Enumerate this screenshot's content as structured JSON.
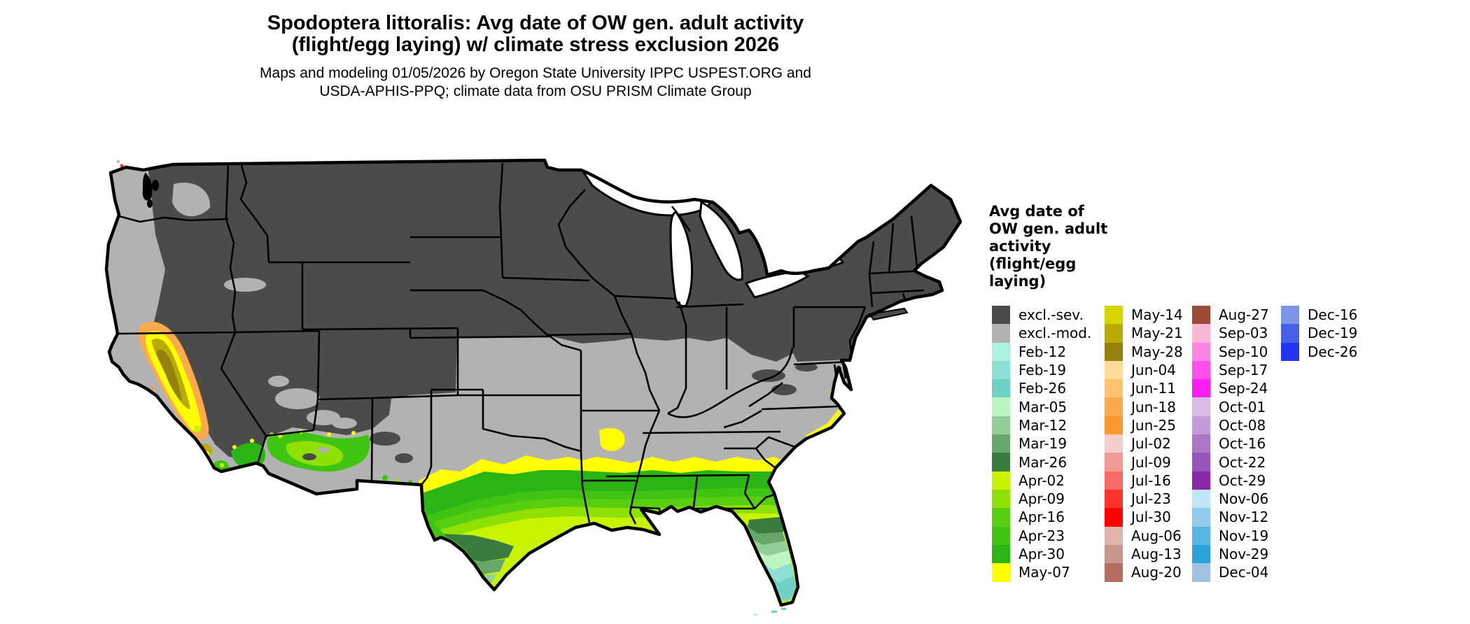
{
  "title": {
    "line1": "Spodoptera littoralis: Avg date of OW gen. adult activity",
    "line2": "(flight/egg laying) w/ climate stress exclusion 2026"
  },
  "subtitle": {
    "line1": "Maps and modeling 01/05/2026 by Oregon State University IPPC USPEST.ORG and",
    "line2": "USDA-APHIS-PPQ; climate data from OSU PRISM Climate Group"
  },
  "legend": {
    "title_lines": [
      "Avg date of",
      "OW gen. adult",
      "activity",
      "(flight/egg",
      "laying)"
    ],
    "columns": [
      {
        "entries": [
          {
            "label": "excl.-sev.",
            "color": "#4b4b4b"
          },
          {
            "label": "excl.-mod.",
            "color": "#b2b2b2"
          },
          {
            "label": "Feb-12",
            "color": "#aaf3dc"
          },
          {
            "label": "Feb-19",
            "color": "#8ce0d4"
          },
          {
            "label": "Feb-26",
            "color": "#70d1c6"
          },
          {
            "label": "Mar-05",
            "color": "#bdf6c5"
          },
          {
            "label": "Mar-12",
            "color": "#92cf97"
          },
          {
            "label": "Mar-19",
            "color": "#68a76c"
          },
          {
            "label": "Mar-26",
            "color": "#3a7b40"
          },
          {
            "label": "Apr-02",
            "color": "#c9f302"
          },
          {
            "label": "Apr-09",
            "color": "#8fe105"
          },
          {
            "label": "Apr-16",
            "color": "#57cf10"
          },
          {
            "label": "Apr-23",
            "color": "#3fc411"
          },
          {
            "label": "Apr-30",
            "color": "#2ab514"
          },
          {
            "label": "May-07",
            "color": "#ffff00"
          }
        ]
      },
      {
        "entries": [
          {
            "label": "May-14",
            "color": "#d7d500"
          },
          {
            "label": "May-21",
            "color": "#baaa08"
          },
          {
            "label": "May-28",
            "color": "#94800b"
          },
          {
            "label": "Jun-04",
            "color": "#ffdd99"
          },
          {
            "label": "Jun-11",
            "color": "#ffc470"
          },
          {
            "label": "Jun-18",
            "color": "#fbab4d"
          },
          {
            "label": "Jun-25",
            "color": "#fb9930"
          },
          {
            "label": "Jul-02",
            "color": "#f2cfcc"
          },
          {
            "label": "Jul-09",
            "color": "#f29a96"
          },
          {
            "label": "Jul-16",
            "color": "#f76b66"
          },
          {
            "label": "Jul-23",
            "color": "#fa332c"
          },
          {
            "label": "Jul-30",
            "color": "#ff0100"
          },
          {
            "label": "Aug-06",
            "color": "#e0b5ab"
          },
          {
            "label": "Aug-13",
            "color": "#c9968b"
          },
          {
            "label": "Aug-20",
            "color": "#b56f60"
          }
        ]
      },
      {
        "entries": [
          {
            "label": "Aug-27",
            "color": "#9e4a38"
          },
          {
            "label": "Sep-03",
            "color": "#fbb5d6"
          },
          {
            "label": "Sep-10",
            "color": "#fb85e3"
          },
          {
            "label": "Sep-17",
            "color": "#fb50ec"
          },
          {
            "label": "Sep-24",
            "color": "#fb1ef1"
          },
          {
            "label": "Oct-01",
            "color": "#d9bce4"
          },
          {
            "label": "Oct-08",
            "color": "#c39bd8"
          },
          {
            "label": "Oct-16",
            "color": "#ac74c9"
          },
          {
            "label": "Oct-22",
            "color": "#9a52bd"
          },
          {
            "label": "Oct-29",
            "color": "#8a28a9"
          },
          {
            "label": "Nov-06",
            "color": "#bfe6f8"
          },
          {
            "label": "Nov-12",
            "color": "#90cbec"
          },
          {
            "label": "Nov-19",
            "color": "#58b5e4"
          },
          {
            "label": "Nov-29",
            "color": "#29a3dc"
          },
          {
            "label": "Dec-04",
            "color": "#9fc2e4"
          }
        ]
      },
      {
        "entries": [
          {
            "label": "Dec-16",
            "color": "#7d96e8"
          },
          {
            "label": "Dec-19",
            "color": "#4a5fe8"
          },
          {
            "label": "Dec-26",
            "color": "#2134f0"
          }
        ]
      }
    ]
  },
  "map": {
    "description": "CONUS map of average date of overwintered generation adult activity with climate stress exclusion",
    "water_color": "#ffffff",
    "border_color": "#000000"
  }
}
